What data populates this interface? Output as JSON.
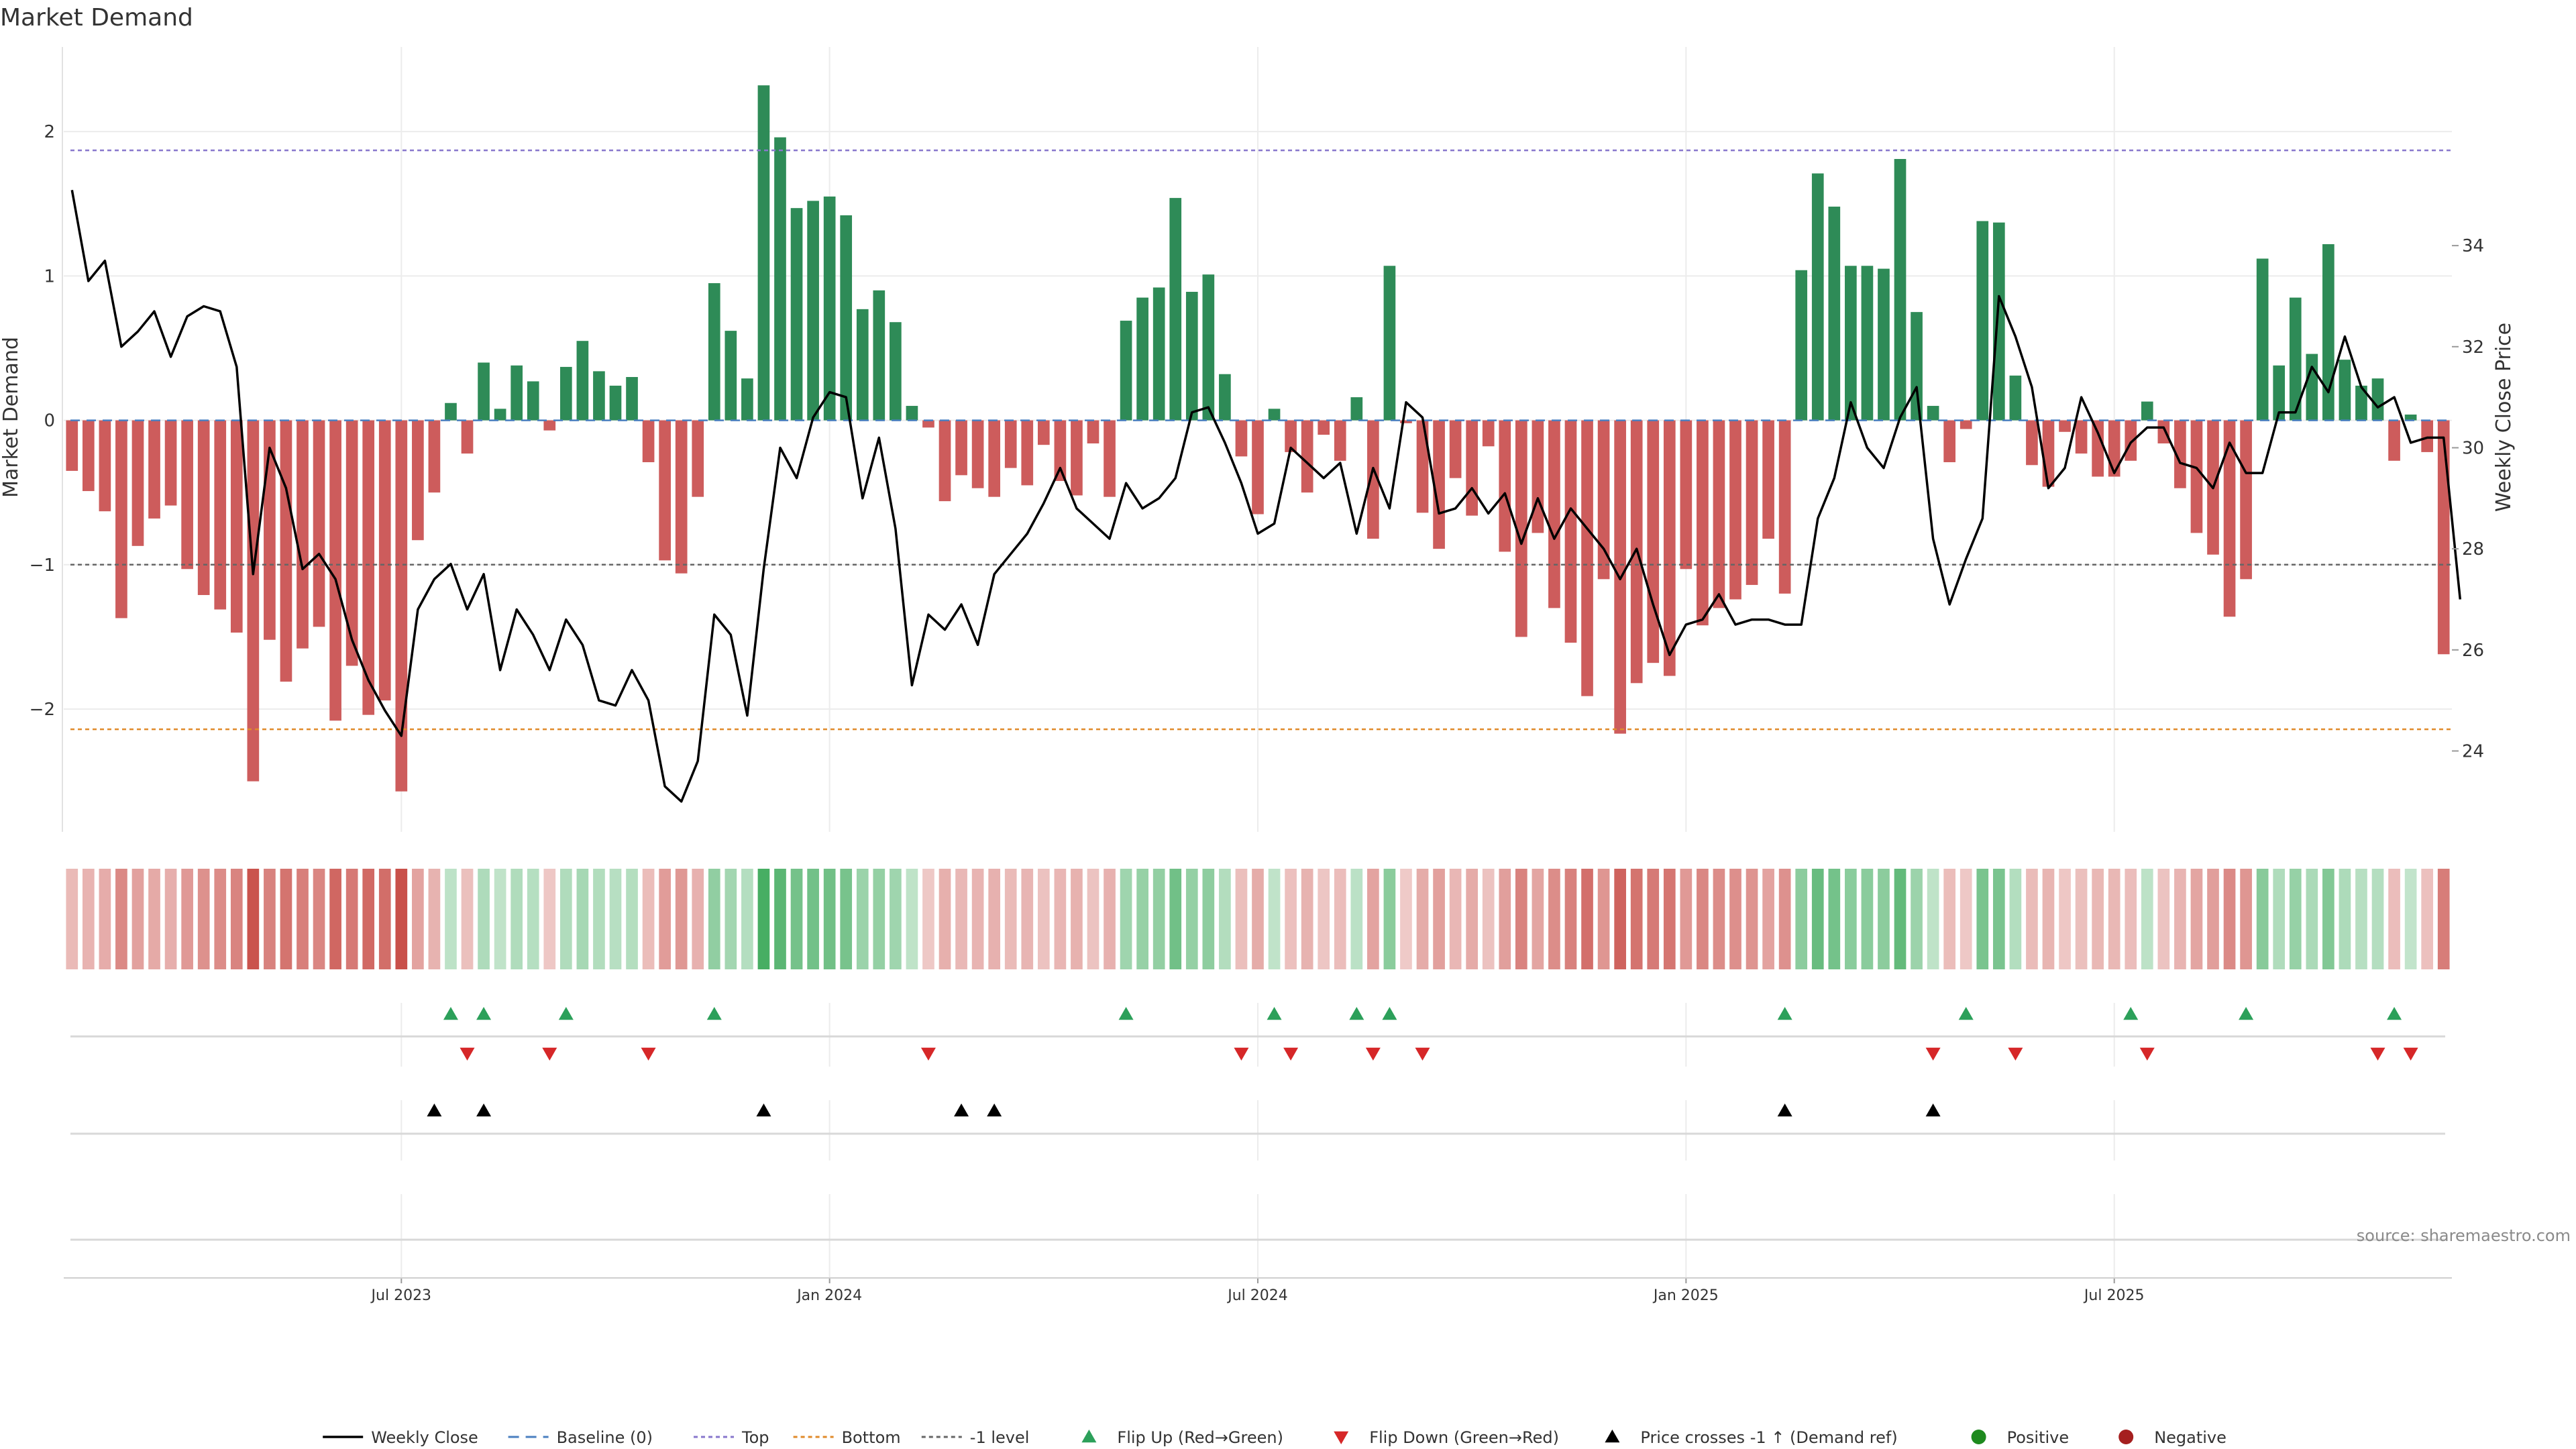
{
  "chart_data": {
    "type": "bar",
    "title": "Market Demand",
    "ylabel_left": "Market Demand",
    "ylabel_right": "Weekly Close Price",
    "left_ylim": [
      -2.85,
      2.4
    ],
    "left_yticks": [
      2,
      1,
      0,
      -1,
      -2
    ],
    "left_ytick_labels": [
      "2",
      "1",
      "0",
      "−1",
      "−2"
    ],
    "right_ylim": [
      22.4,
      37.4
    ],
    "right_yticks": [
      34,
      32,
      30,
      28,
      26,
      24
    ],
    "right_ytick_labels": [
      "34",
      "32",
      "30",
      "28",
      "26",
      "24"
    ],
    "reference_lines": {
      "top": 1.87,
      "bottom": -2.14,
      "minus_one": -1.0,
      "baseline": 0
    },
    "x_tick_labels": [
      "Jul 2023",
      "Jan 2024",
      "Jul 2024",
      "Jan 2025",
      "Jul 2025"
    ],
    "x_tick_week_index": [
      20,
      46,
      72,
      98,
      124
    ],
    "demand": [
      -0.35,
      -0.49,
      -0.63,
      -1.37,
      -0.87,
      -0.68,
      -0.59,
      -1.03,
      -1.21,
      -1.31,
      -1.47,
      -2.5,
      -1.52,
      -1.81,
      -1.58,
      -1.43,
      -2.08,
      -1.7,
      -2.04,
      -1.94,
      -2.57,
      -0.83,
      -0.5,
      0.12,
      -0.23,
      0.4,
      0.08,
      0.38,
      0.27,
      -0.07,
      0.37,
      0.55,
      0.34,
      0.24,
      0.3,
      -0.29,
      -0.97,
      -1.06,
      -0.53,
      0.95,
      0.62,
      0.29,
      2.32,
      1.96,
      1.47,
      1.52,
      1.55,
      1.42,
      0.77,
      0.9,
      0.68,
      0.1,
      -0.05,
      -0.56,
      -0.38,
      -0.47,
      -0.53,
      -0.33,
      -0.45,
      -0.17,
      -0.42,
      -0.52,
      -0.16,
      -0.53,
      0.69,
      0.85,
      0.92,
      1.54,
      0.89,
      1.01,
      0.32,
      -0.25,
      -0.65,
      0.08,
      -0.22,
      -0.5,
      -0.1,
      -0.28,
      0.16,
      -0.82,
      1.07,
      -0.02,
      -0.64,
      -0.89,
      -0.4,
      -0.66,
      -0.18,
      -0.91,
      -1.5,
      -0.78,
      -1.3,
      -1.54,
      -1.91,
      -1.1,
      -2.17,
      -1.82,
      -1.68,
      -1.77,
      -1.03,
      -1.42,
      -1.3,
      -1.24,
      -1.14,
      -0.82,
      -1.2,
      1.04,
      1.71,
      1.48,
      1.07,
      1.07,
      1.05,
      1.81,
      0.75,
      0.1,
      -0.29,
      -0.06,
      1.38,
      1.37,
      0.31,
      -0.31,
      -0.46,
      -0.08,
      -0.23,
      -0.39,
      -0.39,
      -0.28,
      0.13,
      -0.16,
      -0.47,
      -0.78,
      -0.93,
      -1.36,
      -1.1,
      1.12,
      0.38,
      0.85,
      0.46,
      1.22,
      0.42,
      0.24,
      0.29,
      -0.28,
      0.04,
      -0.22,
      -1.62
    ],
    "weekly_close": [
      35.1,
      33.3,
      33.7,
      32.0,
      32.3,
      32.7,
      31.8,
      32.6,
      32.8,
      32.7,
      31.6,
      27.5,
      30.0,
      29.2,
      27.6,
      27.9,
      27.4,
      26.2,
      25.4,
      24.8,
      24.3,
      26.8,
      27.4,
      27.7,
      26.8,
      27.5,
      25.6,
      26.8,
      26.3,
      25.6,
      26.6,
      26.1,
      25.0,
      24.9,
      25.6,
      25.0,
      23.3,
      23.0,
      23.8,
      26.7,
      26.3,
      24.7,
      27.6,
      30.0,
      29.4,
      30.6,
      31.1,
      31.0,
      29.0,
      30.2,
      28.4,
      25.3,
      26.7,
      26.4,
      26.9,
      26.1,
      27.5,
      27.9,
      28.3,
      28.9,
      29.6,
      28.8,
      28.5,
      28.2,
      29.3,
      28.8,
      29.0,
      29.4,
      30.7,
      30.8,
      30.1,
      29.3,
      28.3,
      28.5,
      30.0,
      29.7,
      29.4,
      29.7,
      28.3,
      29.6,
      28.8,
      30.9,
      30.6,
      28.7,
      28.8,
      29.2,
      28.7,
      29.1,
      28.1,
      29.0,
      28.2,
      28.8,
      28.4,
      28.0,
      27.4,
      28.0,
      26.9,
      25.9,
      26.5,
      26.6,
      27.1,
      26.5,
      26.6,
      26.6,
      26.5,
      26.5,
      28.6,
      29.4,
      30.9,
      30.0,
      29.6,
      30.6,
      31.2,
      28.2,
      26.9,
      27.8,
      28.6,
      33.0,
      32.2,
      31.2,
      29.2,
      29.6,
      31.0,
      30.3,
      29.5,
      30.1,
      30.4,
      30.4,
      29.7,
      29.6,
      29.2,
      30.1,
      29.5,
      29.5,
      30.7,
      30.7,
      31.6,
      31.1,
      32.2,
      31.2,
      30.8,
      31.0,
      30.1,
      30.2,
      30.2,
      27.0
    ],
    "flip_up_weeks": [
      23,
      25,
      30,
      39,
      64,
      73,
      78,
      80,
      104,
      115,
      125,
      132,
      141
    ],
    "flip_down_weeks": [
      24,
      29,
      35,
      52,
      71,
      74,
      79,
      82,
      113,
      118,
      126,
      140,
      142
    ],
    "price_cross_weeks": [
      22,
      25,
      42,
      54,
      56,
      104,
      113
    ],
    "colors": {
      "positive_bar": "#2e8b57",
      "negative_bar": "#cd5c5c",
      "price_line": "#000000",
      "baseline": "#4a7fc0",
      "top_line": "#8877cc",
      "bottom_line": "#e08a2a",
      "minus_one_line": "#666666",
      "flip_up": "#2ca05a",
      "flip_down": "#d62728",
      "price_cross": "#000000",
      "positive_dot": "#1e8a1e",
      "negative_dot": "#a51f1f"
    }
  },
  "legend": [
    {
      "label": "Weekly Close",
      "kind": "line",
      "color": "#000000"
    },
    {
      "label": "Baseline (0)",
      "kind": "dash",
      "color": "#4a7fc0"
    },
    {
      "label": "Top",
      "kind": "dot",
      "color": "#8877cc"
    },
    {
      "label": "Bottom",
      "kind": "dot",
      "color": "#e08a2a"
    },
    {
      "label": "-1 level",
      "kind": "dot",
      "color": "#666666"
    },
    {
      "label": "Flip Up (Red→Green)",
      "kind": "tri-up",
      "color": "#2ca05a"
    },
    {
      "label": "Flip Down (Green→Red)",
      "kind": "tri-down",
      "color": "#d62728"
    },
    {
      "label": "Price crosses -1 ↑ (Demand ref)",
      "kind": "tri-up",
      "color": "#000000"
    },
    {
      "label": "Positive",
      "kind": "circle",
      "color": "#1e8a1e"
    },
    {
      "label": "Negative",
      "kind": "circle",
      "color": "#a51f1f"
    }
  ],
  "source_text": "source: sharemaestro.com"
}
